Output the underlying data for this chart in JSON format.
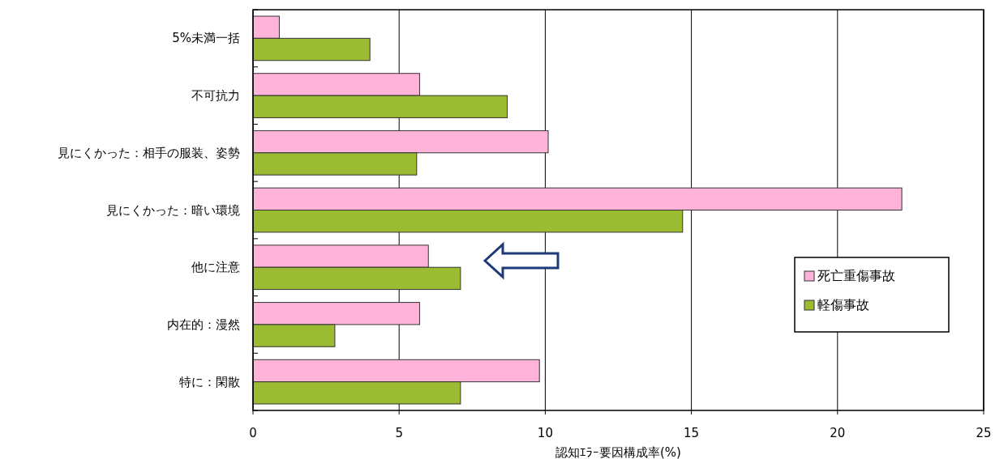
{
  "chart_data": {
    "type": "bar",
    "orientation": "horizontal",
    "categories": [
      "5%未満一括",
      "不可抗力",
      "見にくかった：相手の服装、姿勢",
      "見にくかった：暗い環境",
      "他に注意",
      "内在的：漫然",
      "特に：閑散"
    ],
    "series": [
      {
        "name": "死亡重傷事故",
        "color": "#ffb3d9",
        "values": [
          0.9,
          5.7,
          10.1,
          22.2,
          6.0,
          5.7,
          9.8
        ]
      },
      {
        "name": "軽傷事故",
        "color": "#9bbb32",
        "values": [
          4.0,
          8.7,
          5.6,
          14.7,
          7.1,
          2.8,
          7.1
        ]
      }
    ],
    "xlim": [
      0,
      25
    ],
    "xticks": [
      0,
      5,
      10,
      15,
      20,
      25
    ],
    "xlabel": "認知ｴﾗｰ要因構成率(%)",
    "grid": "x",
    "legend": "right"
  }
}
